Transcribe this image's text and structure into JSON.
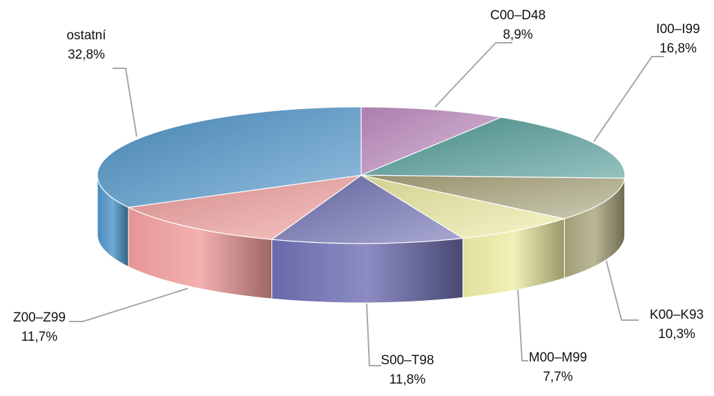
{
  "chart_data": {
    "type": "pie",
    "style": "3d-exploded-tilted",
    "legend": "none",
    "slices": [
      {
        "label": "C00–D48",
        "value_text": "8,9%",
        "value": 8.9,
        "color": "#c28fc3"
      },
      {
        "label": "I00–I99",
        "value_text": "16,8%",
        "value": 16.8,
        "color": "#4e9a95"
      },
      {
        "label": "K00–K93",
        "value_text": "10,3%",
        "value": 10.3,
        "color": "#a9a57c"
      },
      {
        "label": "M00–M99",
        "value_text": "7,7%",
        "value": 7.7,
        "color": "#eeeca4"
      },
      {
        "label": "S00–T98",
        "value_text": "11,8%",
        "value": 11.8,
        "color": "#6f6fb3"
      },
      {
        "label": "Z00–Z99",
        "value_text": "11,7%",
        "value": 11.7,
        "color": "#f09e9c"
      },
      {
        "label": "ostatní",
        "value_text": "32,8%",
        "value": 32.8,
        "color": "#4d94c9"
      }
    ]
  }
}
